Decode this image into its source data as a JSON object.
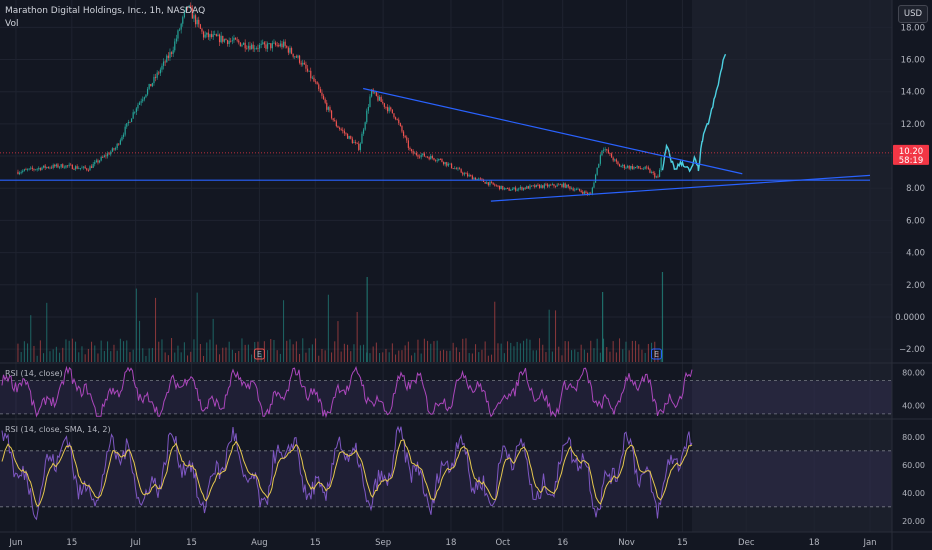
{
  "header": {
    "symbol_line": "Marathon Digital Holdings, Inc., 1h, NASDAQ",
    "volume_label": "Vol",
    "currency_button": "USD"
  },
  "colors": {
    "background": "#131722",
    "up": "#26a69a",
    "down": "#ef5350",
    "highlight_line": "#4dd0e1",
    "trendline": "#2962ff",
    "rsi": "#ab47bc",
    "rsi_sma": "#e6c84f",
    "rsi2": "#7e57c2",
    "price_badge": "#f23645"
  },
  "chart_data": {
    "type": "candlestick",
    "price_axis": {
      "ticks": [
        "18.00",
        "16.00",
        "14.00",
        "12.00",
        "10.00",
        "8.00",
        "6.00",
        "4.00",
        "2.00",
        "0.0000",
        "−2.00"
      ],
      "range": [
        -2.8,
        19.7
      ]
    },
    "time_axis": {
      "ticks": [
        "Jun",
        "15",
        "Jul",
        "15",
        "Aug",
        "15",
        "Sep",
        "18",
        "Oct",
        "16",
        "Nov",
        "15",
        "Dec",
        "18",
        "Jan"
      ]
    },
    "price_path": [
      {
        "date": "Jun 1",
        "price": 9.0
      },
      {
        "date": "Jun 8",
        "price": 9.3
      },
      {
        "date": "Jun 13",
        "price": 9.4
      },
      {
        "date": "Jun 19",
        "price": 9.2
      },
      {
        "date": "Jun 26",
        "price": 10.5
      },
      {
        "date": "Jul 1",
        "price": 13.0
      },
      {
        "date": "Jul 5",
        "price": 14.5
      },
      {
        "date": "Jul 10",
        "price": 16.5
      },
      {
        "date": "Jul 14",
        "price": 19.3
      },
      {
        "date": "Jul 18",
        "price": 17.5
      },
      {
        "date": "Jul 24",
        "price": 17.2
      },
      {
        "date": "Jul 31",
        "price": 16.8
      },
      {
        "date": "Aug 7",
        "price": 16.9
      },
      {
        "date": "Aug 11",
        "price": 16.0
      },
      {
        "date": "Aug 15",
        "price": 14.5
      },
      {
        "date": "Aug 20",
        "price": 12.0
      },
      {
        "date": "Aug 26",
        "price": 10.5
      },
      {
        "date": "Aug 29",
        "price": 14.0
      },
      {
        "date": "Sep 4",
        "price": 12.5
      },
      {
        "date": "Sep 8",
        "price": 10.2
      },
      {
        "date": "Sep 15",
        "price": 9.8
      },
      {
        "date": "Sep 22",
        "price": 8.8
      },
      {
        "date": "Oct 2",
        "price": 7.9
      },
      {
        "date": "Oct 9",
        "price": 8.1
      },
      {
        "date": "Oct 16",
        "price": 8.2
      },
      {
        "date": "Oct 23",
        "price": 7.6
      },
      {
        "date": "Oct 26",
        "price": 10.6
      },
      {
        "date": "Oct 30",
        "price": 9.4
      },
      {
        "date": "Nov 6",
        "price": 9.2
      },
      {
        "date": "Nov 9",
        "price": 8.6
      },
      {
        "date": "Nov 10",
        "price": 10.5
      }
    ],
    "highlighted_path": [
      {
        "date": "Nov 10",
        "price": 9.0
      },
      {
        "date": "Nov 11",
        "price": 10.6
      },
      {
        "date": "Nov 13",
        "price": 9.2
      },
      {
        "date": "Nov 15",
        "price": 9.6
      },
      {
        "date": "Nov 17",
        "price": 9.0
      },
      {
        "date": "Nov 18",
        "price": 9.8
      },
      {
        "date": "Nov 19",
        "price": 9.2
      },
      {
        "date": "Nov 20",
        "price": 11.0
      },
      {
        "date": "Nov 22",
        "price": 12.5
      },
      {
        "date": "Nov 24",
        "price": 14.5
      },
      {
        "date": "Nov 26",
        "price": 16.7
      }
    ],
    "trendlines": [
      {
        "from": {
          "date": "Aug 27",
          "price": 14.2
        },
        "to": {
          "date": "Nov 30",
          "price": 8.9
        }
      },
      {
        "from": {
          "date": "Sep 28",
          "price": 7.2
        },
        "to": {
          "date": "Jan 1",
          "price": 8.8
        }
      },
      {
        "from": {
          "date": "May 28",
          "price": 8.5
        },
        "to": {
          "date": "Jan 1",
          "price": 8.5
        }
      }
    ],
    "last_price": {
      "value": "10.20",
      "countdown": "58:19"
    },
    "volume_events": [
      "E",
      "E"
    ],
    "rsi_panels": [
      {
        "title": "RSI (14, close)",
        "levels": [
          "80.00",
          "40.00"
        ],
        "range": [
          25,
          90
        ]
      },
      {
        "title": "RSI (14, close, SMA, 14, 2)",
        "levels": [
          "80.00",
          "60.00",
          "40.00",
          "20.00"
        ],
        "range": [
          12,
          92
        ]
      }
    ]
  }
}
